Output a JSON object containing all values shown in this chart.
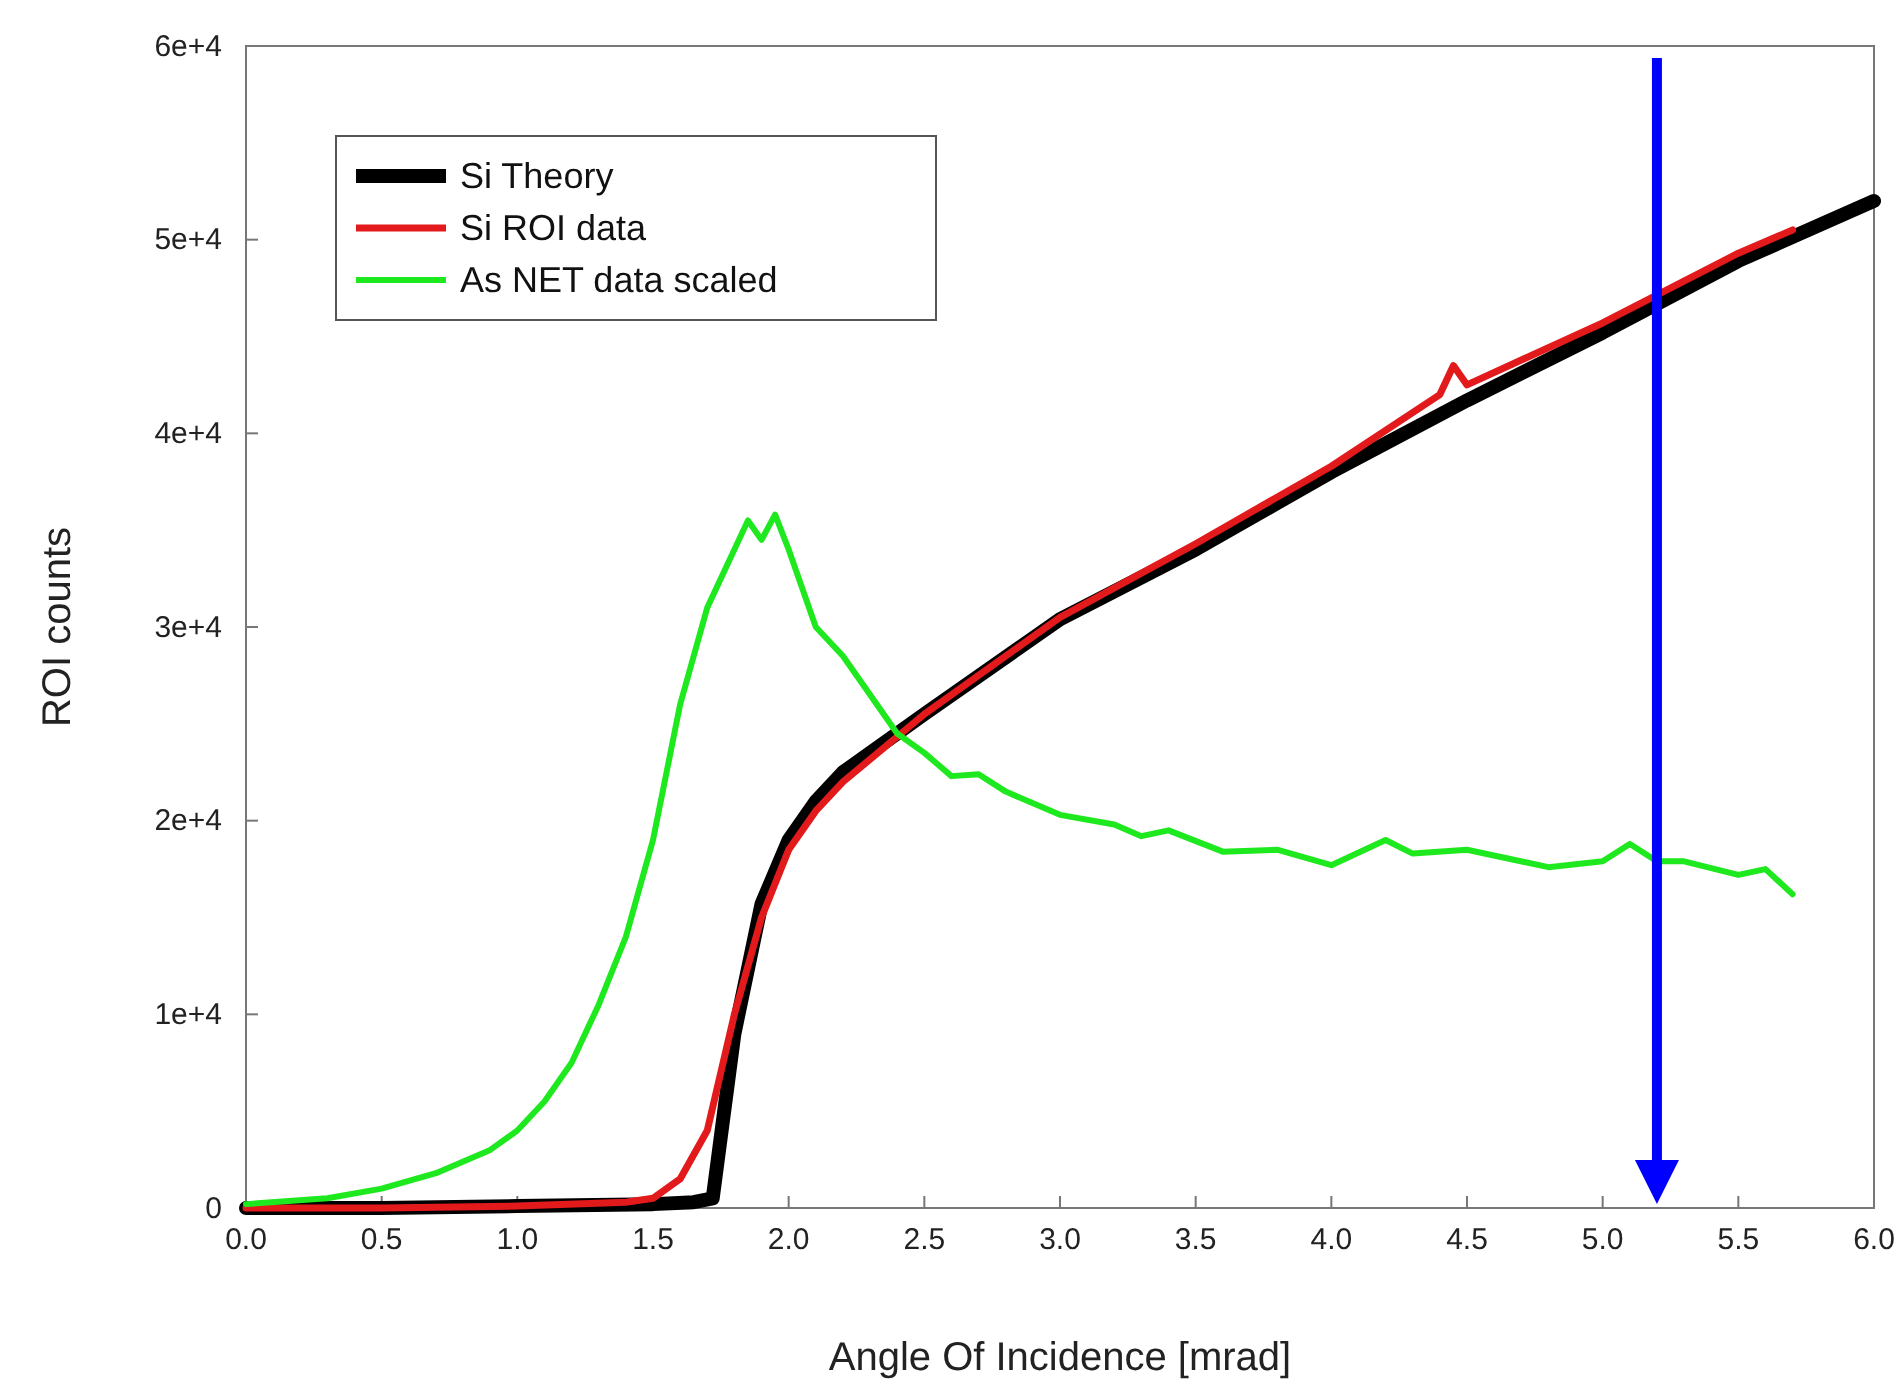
{
  "chart_data": {
    "type": "line",
    "xlabel": "Angle Of Incidence [mrad]",
    "ylabel": "ROI counts",
    "xlim": [
      0,
      6
    ],
    "ylim": [
      0,
      60000
    ],
    "xticks": [
      {
        "value": 0,
        "label": "0.0"
      },
      {
        "value": 0.5,
        "label": "0.5"
      },
      {
        "value": 1,
        "label": "1.0"
      },
      {
        "value": 1.5,
        "label": "1.5"
      },
      {
        "value": 2,
        "label": "2.0"
      },
      {
        "value": 2.5,
        "label": "2.5"
      },
      {
        "value": 3,
        "label": "3.0"
      },
      {
        "value": 3.5,
        "label": "3.5"
      },
      {
        "value": 4,
        "label": "4.0"
      },
      {
        "value": 4.5,
        "label": "4.5"
      },
      {
        "value": 5,
        "label": "5.0"
      },
      {
        "value": 5.5,
        "label": "5.5"
      },
      {
        "value": 6,
        "label": "6.0"
      }
    ],
    "yticks": [
      0,
      {
        "value": 10000,
        "label": "1e+4"
      },
      {
        "value": 20000,
        "label": "2e+4"
      },
      {
        "value": 30000,
        "label": "3e+4"
      },
      {
        "value": 40000,
        "label": "4e+4"
      },
      {
        "value": 50000,
        "label": "5e+4"
      },
      {
        "value": 60000,
        "label": "6e+4"
      }
    ],
    "grid": false,
    "legend": "top left",
    "marker": "none",
    "line_style": "solid",
    "series": [
      {
        "name": "Si Theory",
        "color": "#000000",
        "x": [
          0,
          0.5,
          1,
          1.5,
          1.65,
          1.72,
          1.8,
          1.9,
          2,
          2.1,
          2.2,
          2.5,
          3,
          3.5,
          4,
          4.5,
          5,
          5.5,
          6
        ],
        "values": [
          0,
          0,
          100,
          200,
          300,
          500,
          9000,
          15700,
          19000,
          21000,
          22500,
          25500,
          30400,
          34000,
          38000,
          41700,
          45200,
          48900,
          52000
        ]
      },
      {
        "name": "Si ROI data",
        "color": "#e31a1c",
        "x": [
          0,
          0.5,
          1,
          1.4,
          1.5,
          1.6,
          1.7,
          1.8,
          1.9,
          2,
          2.1,
          2.2,
          2.5,
          3,
          3.5,
          4,
          4.4,
          4.45,
          4.5,
          5,
          5.5,
          5.7
        ],
        "values": [
          0,
          0,
          100,
          300,
          500,
          1500,
          4000,
          10000,
          15000,
          18500,
          20500,
          22000,
          25500,
          30500,
          34300,
          38300,
          42000,
          43500,
          42500,
          45700,
          49300,
          50500
        ]
      },
      {
        "name": "As NET data scaled",
        "color": "#1ee81e",
        "x": [
          0,
          0.3,
          0.5,
          0.7,
          0.9,
          1,
          1.1,
          1.2,
          1.3,
          1.4,
          1.5,
          1.6,
          1.7,
          1.8,
          1.85,
          1.9,
          1.95,
          2,
          2.1,
          2.2,
          2.3,
          2.4,
          2.5,
          2.6,
          2.7,
          2.8,
          3,
          3.2,
          3.3,
          3.4,
          3.6,
          3.8,
          4,
          4.2,
          4.3,
          4.5,
          4.8,
          5,
          5.1,
          5.2,
          5.3,
          5.5,
          5.6,
          5.7
        ],
        "values": [
          200,
          500,
          1000,
          1800,
          3000,
          4000,
          5500,
          7500,
          10500,
          14000,
          19000,
          26000,
          31000,
          34000,
          35500,
          34500,
          35800,
          34000,
          30000,
          28500,
          26500,
          24500,
          23500,
          22300,
          22400,
          21500,
          20300,
          19800,
          19200,
          19500,
          18400,
          18500,
          17700,
          19000,
          18300,
          18500,
          17600,
          17900,
          18800,
          17900,
          17900,
          17200,
          17500,
          16200
        ]
      }
    ],
    "ref_lines": [
      {
        "axis": "x",
        "value": 5.2,
        "color": "#0000ff"
      }
    ]
  }
}
